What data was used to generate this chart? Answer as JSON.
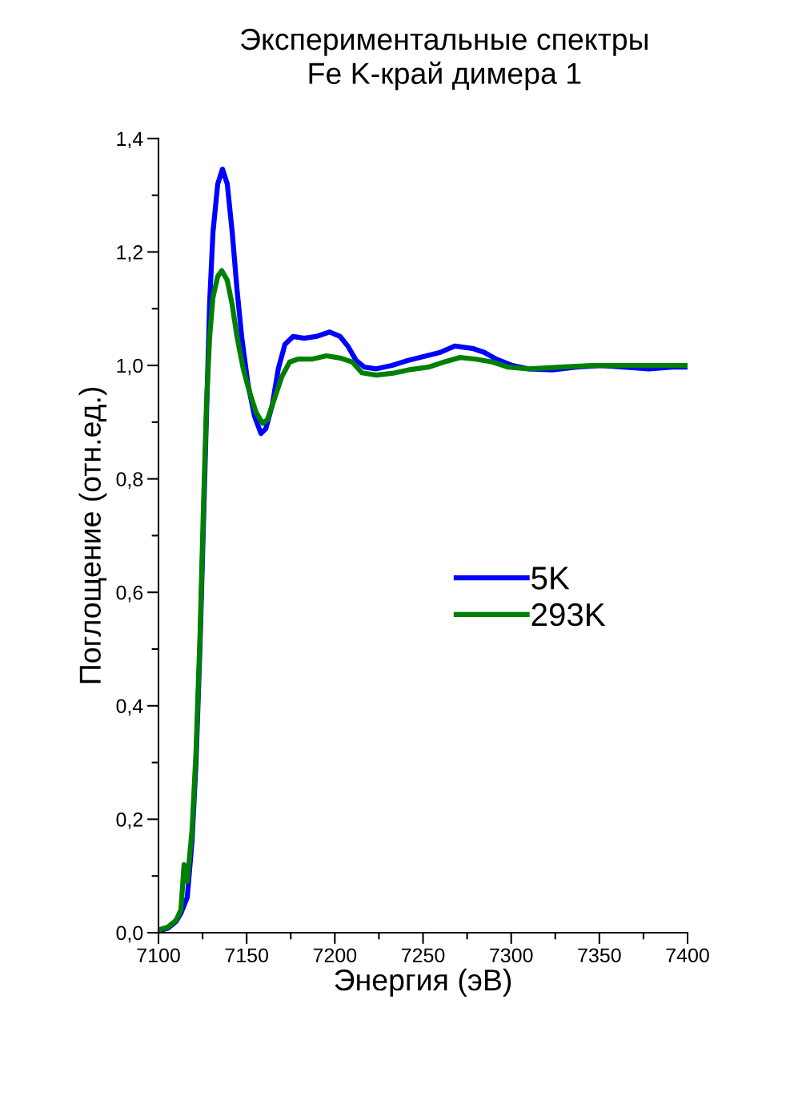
{
  "chart_data": {
    "type": "line",
    "title": "Экспериментальные спектры\nFe K-край димера 1",
    "xlabel": "Энергия (эВ)",
    "ylabel": "Поглощение (отн.ед.)",
    "xlim": [
      7100,
      7400
    ],
    "xticks": [
      7100,
      7150,
      7200,
      7250,
      7300,
      7350,
      7400
    ],
    "ylim": [
      0,
      1.4
    ],
    "yticks": [
      {
        "value": 0,
        "label": "0,0"
      },
      {
        "value": 0.2,
        "label": "0,2"
      },
      {
        "value": 0.4,
        "label": "0,4"
      },
      {
        "value": 0.6,
        "label": "0,6"
      },
      {
        "value": 0.8,
        "label": "0,8"
      },
      {
        "value": 1.0,
        "label": "1,0"
      },
      {
        "value": 1.2,
        "label": "1,2"
      },
      {
        "value": 1.4,
        "label": "1,4"
      }
    ],
    "grid": false,
    "legend": "right",
    "marker": "none",
    "line_style": "solid",
    "series": [
      {
        "name": "5K",
        "color": "#0000ff",
        "x": [
          7100,
          7105.4,
          7110,
          7112.7,
          7116.3,
          7119,
          7121.3,
          7123.6,
          7129,
          7130.9,
          7133.6,
          7136.3,
          7139,
          7141.8,
          7144.5,
          7147.2,
          7150.8,
          7154.5,
          7158.1,
          7160.8,
          7164.5,
          7168,
          7171.7,
          7176.3,
          7182.6,
          7189.4,
          7197.1,
          7203,
          7207.6,
          7212,
          7216.7,
          7223.5,
          7232.5,
          7241.6,
          7250.7,
          7259.8,
          7268,
          7278,
          7284.7,
          7291.6,
          7300.6,
          7309.7,
          7323.3,
          7337,
          7350.6,
          7364,
          7378,
          7391.4,
          7400
        ],
        "values": [
          0.003,
          0.008,
          0.02,
          0.034,
          0.062,
          0.16,
          0.3,
          0.51,
          1.11,
          1.235,
          1.32,
          1.346,
          1.32,
          1.235,
          1.135,
          1.05,
          0.966,
          0.91,
          0.88,
          0.888,
          0.93,
          0.995,
          1.037,
          1.051,
          1.048,
          1.051,
          1.059,
          1.051,
          1.033,
          1.009,
          0.997,
          0.994,
          1.0,
          1.009,
          1.016,
          1.023,
          1.034,
          1.03,
          1.023,
          1.011,
          1.0,
          0.994,
          0.992,
          0.997,
          1.0,
          0.997,
          0.994,
          0.997,
          0.997
        ]
      },
      {
        "name": "293K",
        "color": "#008000",
        "x": [
          7100,
          7105.4,
          7110,
          7112.7,
          7114.5,
          7116.3,
          7119,
          7121.3,
          7123.6,
          7125.4,
          7127.2,
          7129,
          7130.9,
          7133.6,
          7135.9,
          7139,
          7141.8,
          7144.5,
          7148,
          7151.7,
          7155.4,
          7159,
          7161.7,
          7165.4,
          7169.9,
          7174.4,
          7179,
          7187,
          7195.3,
          7203,
          7209.9,
          7215.3,
          7223.5,
          7232.5,
          7241.6,
          7253,
          7262,
          7271,
          7280,
          7289.3,
          7298.4,
          7309.7,
          7327.9,
          7346,
          7364,
          7382,
          7400
        ],
        "values": [
          0.005,
          0.01,
          0.022,
          0.04,
          0.12,
          0.09,
          0.18,
          0.32,
          0.53,
          0.74,
          0.93,
          1.05,
          1.12,
          1.157,
          1.167,
          1.15,
          1.107,
          1.051,
          0.995,
          0.952,
          0.917,
          0.898,
          0.904,
          0.938,
          0.98,
          1.006,
          1.011,
          1.011,
          1.017,
          1.013,
          1.006,
          0.987,
          0.983,
          0.986,
          0.992,
          0.997,
          1.006,
          1.014,
          1.011,
          1.006,
          0.997,
          0.994,
          0.997,
          1.0,
          1.0,
          1.0,
          1.0
        ]
      }
    ]
  }
}
